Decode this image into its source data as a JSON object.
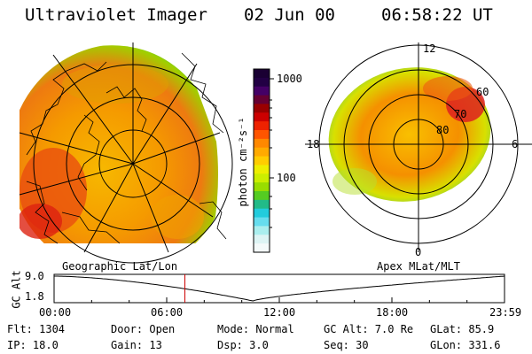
{
  "header": {
    "instrument": "Ultraviolet Imager",
    "date": "02 Jun 00",
    "time": "06:58:22 UT"
  },
  "colorbar": {
    "unit_label": "photon cm⁻²s⁻¹",
    "ticks": [
      "1000",
      "100"
    ],
    "colors": [
      "#1a0033",
      "#220044",
      "#440066",
      "#660033",
      "#990000",
      "#cc0000",
      "#ee2200",
      "#ff5500",
      "#ff8800",
      "#ffaa00",
      "#ffcc00",
      "#eeee00",
      "#ccee00",
      "#99dd00",
      "#55cc22",
      "#22bb88",
      "#22ccdd",
      "#66ddee",
      "#aaeeee",
      "#ddf4f4",
      "#f4fafa"
    ]
  },
  "left_panel": {
    "label": "Geographic Lat/Lon"
  },
  "right_panel": {
    "label": "Apex MLat/MLT",
    "mlt_labels": [
      "12",
      "18",
      "6",
      "0"
    ],
    "lat_labels": [
      "60",
      "70",
      "80"
    ]
  },
  "altitude_plot": {
    "ylabel": "GC Alt",
    "yticks": [
      "9.0",
      "1.8"
    ],
    "xticks": [
      "00:00",
      "06:00",
      "12:00",
      "18:00",
      "23:59"
    ],
    "marker_hour": 6.97
  },
  "status": {
    "flt": "Flt: 1304",
    "door": "Door: Open",
    "mode": "Mode: Normal",
    "gc_alt": "GC Alt: 7.0 Re",
    "glat": "GLat:  85.9",
    "ip": "IP: 18.0",
    "gain": "Gain: 13",
    "dsp": "Dsp:     3.0",
    "seq": "Seq: 30",
    "glon": "GLon: 331.6"
  }
}
